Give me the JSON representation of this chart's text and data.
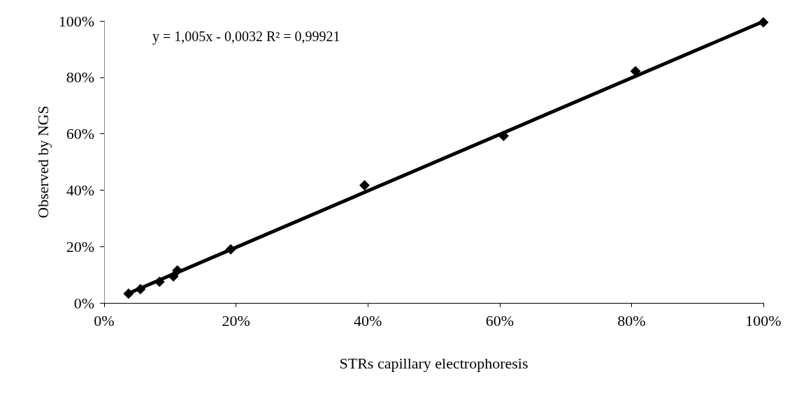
{
  "chart_data": {
    "type": "scatter",
    "xlabel": "STRs capillary electrophoresis",
    "ylabel": "Observed by NGS",
    "annotations": [
      "y = 1,005x - 0,0032 R² = 0,99921"
    ],
    "series": [
      {
        "color": "#000000",
        "marker": "diamond",
        "x": [
          3.7,
          5.5,
          8.4,
          10.5,
          11.1,
          19.2,
          39.5,
          60.6,
          80.6,
          100
        ],
        "values": [
          3.3,
          4.9,
          7.5,
          9.4,
          11.5,
          19.0,
          41.7,
          59.2,
          82.2,
          99.5
        ]
      },
      {
        "type": "line",
        "color": "#000000",
        "marker": "none",
        "x": [
          3.7,
          100
        ],
        "values": [
          3.4,
          99.8
        ]
      }
    ],
    "xlim": [
      0,
      100
    ],
    "ylim": [
      0,
      100
    ],
    "xticks": [
      {
        "value": 0,
        "label": "0%"
      },
      {
        "value": 20,
        "label": "20%"
      },
      {
        "value": 40,
        "label": "40%"
      },
      {
        "value": 60,
        "label": "60%"
      },
      {
        "value": 80,
        "label": "80%"
      },
      {
        "value": 100,
        "label": "100%"
      }
    ],
    "yticks": [
      {
        "value": 0,
        "label": "0%"
      },
      {
        "value": 20,
        "label": "20%"
      },
      {
        "value": 40,
        "label": "40%"
      },
      {
        "value": 60,
        "label": "60%"
      },
      {
        "value": 80,
        "label": "80%"
      },
      {
        "value": 100,
        "label": "100%"
      }
    ],
    "grid": false
  }
}
